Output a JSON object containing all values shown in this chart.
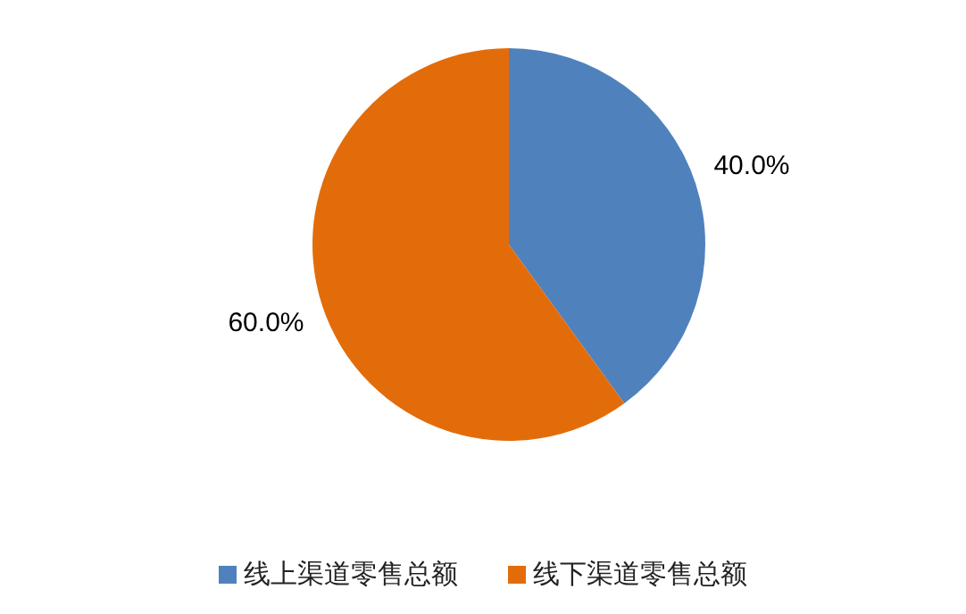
{
  "chart_data": {
    "type": "pie",
    "categories": [
      "线上渠道零售总额",
      "线下渠道零售总额"
    ],
    "values": [
      40,
      60
    ],
    "colors": [
      "#4f81bd",
      "#e36c0a"
    ],
    "value_labels": [
      "40.0%",
      "60.0%"
    ],
    "legend": "bottom"
  }
}
